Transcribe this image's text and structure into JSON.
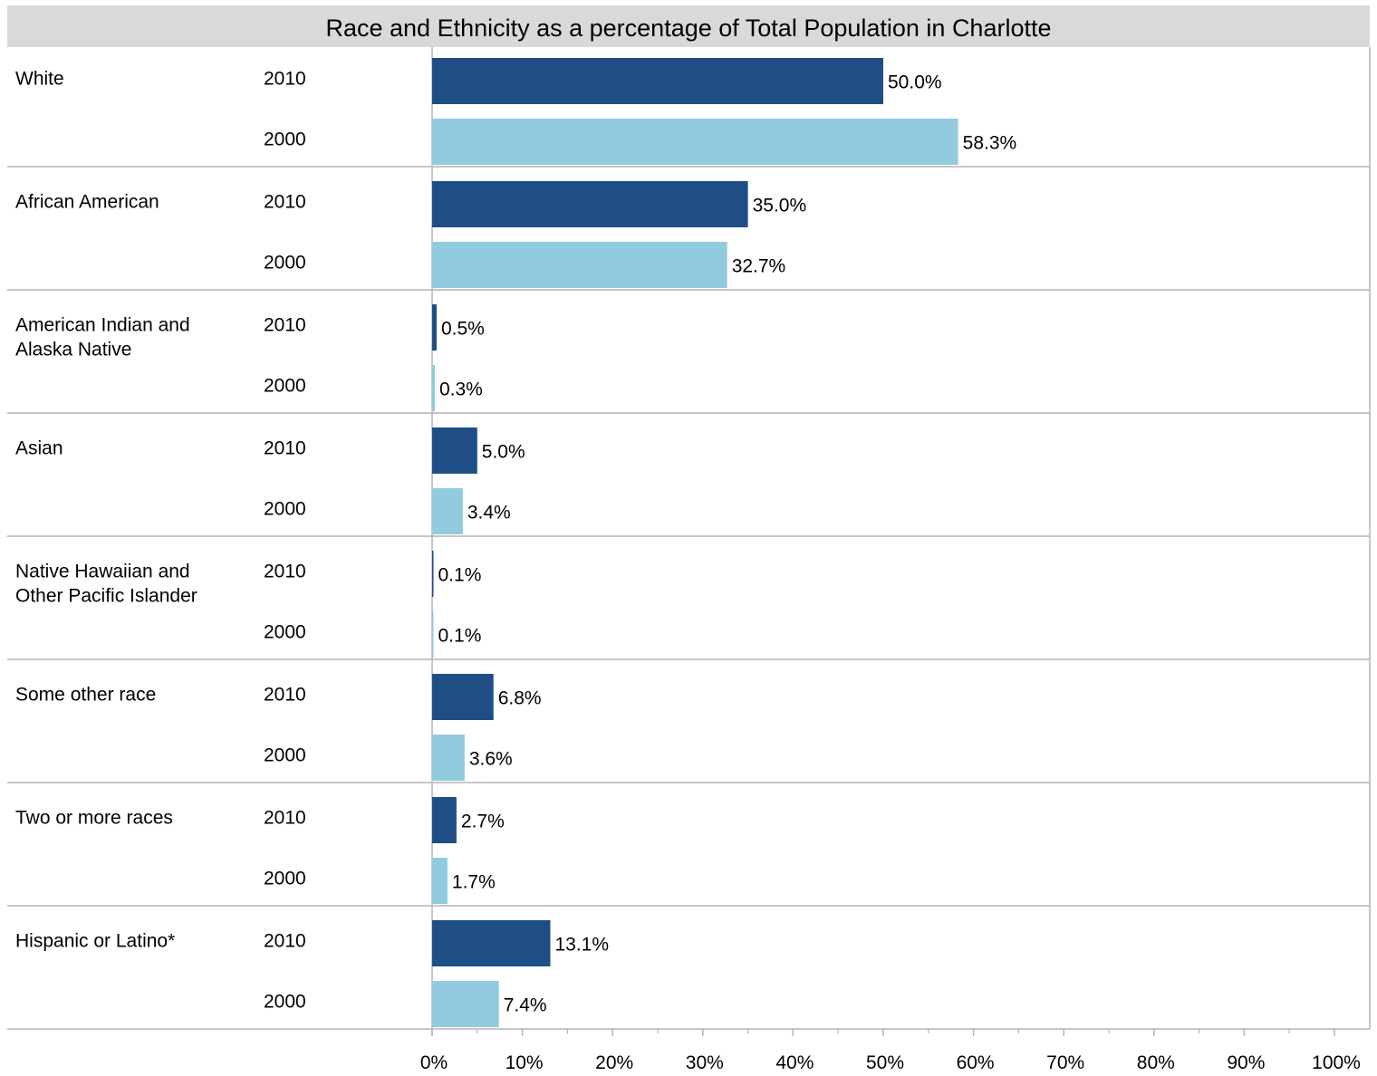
{
  "chart_data": {
    "type": "bar",
    "orientation": "horizontal",
    "title": "Race and Ethnicity as a percentage of Total Population in Charlotte",
    "xlim": [
      0,
      100
    ],
    "x_ticks": [
      "0%",
      "10%",
      "20%",
      "30%",
      "40%",
      "50%",
      "60%",
      "70%",
      "80%",
      "90%",
      "100%"
    ],
    "groups": [
      {
        "label_lines": [
          "White"
        ],
        "rows": [
          {
            "year": "2010",
            "value": 50.0,
            "label": "50.0%"
          },
          {
            "year": "2000",
            "value": 58.3,
            "label": "58.3%"
          }
        ]
      },
      {
        "label_lines": [
          "African American"
        ],
        "rows": [
          {
            "year": "2010",
            "value": 35.0,
            "label": "35.0%"
          },
          {
            "year": "2000",
            "value": 32.7,
            "label": "32.7%"
          }
        ]
      },
      {
        "label_lines": [
          "American Indian and",
          "Alaska Native"
        ],
        "rows": [
          {
            "year": "2010",
            "value": 0.5,
            "label": "0.5%"
          },
          {
            "year": "2000",
            "value": 0.3,
            "label": "0.3%"
          }
        ]
      },
      {
        "label_lines": [
          "Asian"
        ],
        "rows": [
          {
            "year": "2010",
            "value": 5.0,
            "label": "5.0%"
          },
          {
            "year": "2000",
            "value": 3.4,
            "label": "3.4%"
          }
        ]
      },
      {
        "label_lines": [
          "Native Hawaiian and",
          "Other Pacific Islander"
        ],
        "rows": [
          {
            "year": "2010",
            "value": 0.1,
            "label": "0.1%"
          },
          {
            "year": "2000",
            "value": 0.1,
            "label": "0.1%"
          }
        ]
      },
      {
        "label_lines": [
          "Some other race"
        ],
        "rows": [
          {
            "year": "2010",
            "value": 6.8,
            "label": "6.8%"
          },
          {
            "year": "2000",
            "value": 3.6,
            "label": "3.6%"
          }
        ]
      },
      {
        "label_lines": [
          "Two or more races"
        ],
        "rows": [
          {
            "year": "2010",
            "value": 2.7,
            "label": "2.7%"
          },
          {
            "year": "2000",
            "value": 1.7,
            "label": "1.7%"
          }
        ]
      },
      {
        "label_lines": [
          "Hispanic or Latino*"
        ],
        "rows": [
          {
            "year": "2010",
            "value": 13.1,
            "label": "13.1%"
          },
          {
            "year": "2000",
            "value": 7.4,
            "label": "7.4%"
          }
        ]
      }
    ],
    "colors": {
      "2010": "#1f4e85",
      "2000": "#92cbdf",
      "grid": "#b3b3b3",
      "title_background": "#d9d9d9"
    }
  }
}
